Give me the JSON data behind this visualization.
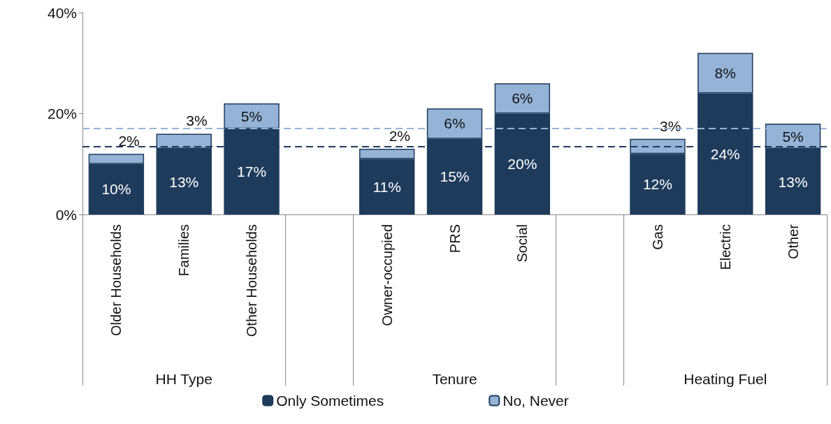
{
  "chart_data": {
    "type": "bar",
    "stacked": true,
    "categories": [
      "Older Households",
      "Families",
      "Other Households",
      null,
      "Owner-occupied",
      "PRS",
      "Social",
      null,
      "Gas",
      "Electric",
      "Other"
    ],
    "series": [
      {
        "name": "Only Sometimes",
        "color": "#1f3b5c",
        "values": [
          10,
          13,
          17,
          null,
          11,
          15,
          20,
          null,
          12,
          24,
          13
        ],
        "value_labels": [
          "10%",
          "13%",
          "17%",
          null,
          "11%",
          "15%",
          "20%",
          null,
          "12%",
          "24%",
          "13%"
        ]
      },
      {
        "name": "No, Never",
        "color": "#95b3d7",
        "values": [
          2,
          3,
          5,
          null,
          2,
          6,
          6,
          null,
          3,
          8,
          5
        ],
        "value_labels": [
          "2%",
          "3%",
          "5%",
          null,
          "2%",
          "6%",
          "6%",
          null,
          "3%",
          "8%",
          "5%"
        ]
      }
    ],
    "ylim": [
      0,
      40
    ],
    "yticks": [
      {
        "value": 0,
        "label": "0%"
      },
      {
        "value": 20,
        "label": "20%"
      },
      {
        "value": 40,
        "label": "40%"
      }
    ],
    "legend": "bottom",
    "grid": false,
    "ref_lines": [
      {
        "axis": "y",
        "value": 17,
        "color": "#95b3d7",
        "line_style": "dashed"
      },
      {
        "axis": "y",
        "value": 13.5,
        "color": "#1f3b5c",
        "line_style": "dashed"
      }
    ],
    "annotations": [
      "HH Type",
      "Tenure",
      "Heating Fuel"
    ]
  }
}
